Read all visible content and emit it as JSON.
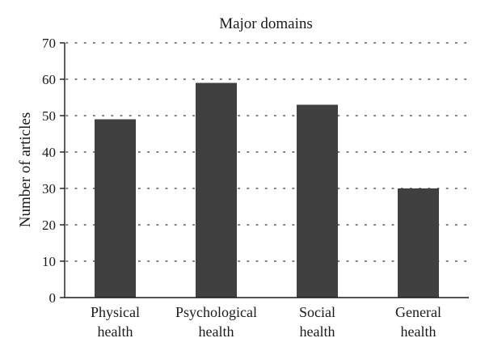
{
  "chart_data": {
    "type": "bar",
    "title": "Major domains",
    "xlabel": "",
    "ylabel": "Number of articles",
    "categories": [
      "Physical health",
      "Psychological health",
      "Social health",
      "General health"
    ],
    "category_lines": [
      [
        "Physical",
        "health"
      ],
      [
        "Psychological",
        "health"
      ],
      [
        "Social",
        "health"
      ],
      [
        "General",
        "health"
      ]
    ],
    "values": [
      49,
      59,
      53,
      30
    ],
    "ylim": [
      0,
      70
    ],
    "yticks": [
      0,
      10,
      20,
      30,
      40,
      50,
      60,
      70
    ],
    "grid": "horizontal dotted",
    "bar_color": "#404040",
    "grid_color": "#555555",
    "axis_color": "#1a1a1a"
  }
}
